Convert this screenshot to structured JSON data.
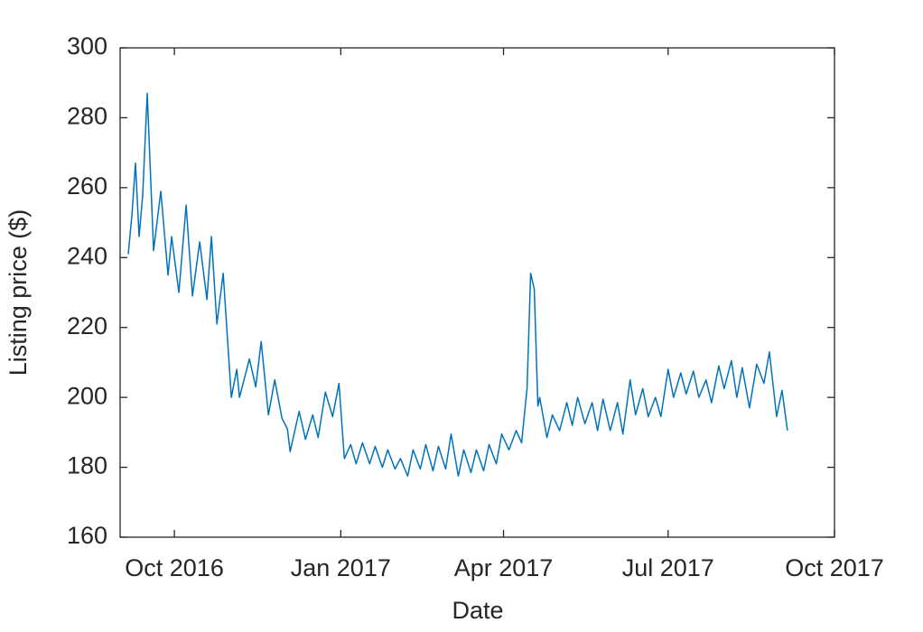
{
  "chart_data": {
    "type": "line",
    "x_label": "Date",
    "y_label": "Listing price   ($)",
    "x": [
      4.5,
      6.5,
      8.5,
      10.5,
      12.5,
      15,
      18.5,
      22.5,
      26.5,
      28.5,
      32.5,
      36.5,
      40,
      44,
      48,
      50.5,
      53.5,
      57,
      61.5,
      64.5,
      66,
      68.5,
      71.5,
      75,
      78,
      82,
      85.5,
      89.5,
      92.5,
      94,
      99,
      102.5,
      106.5,
      109.5,
      113.5,
      117.5,
      121,
      124,
      127.5,
      130.5,
      134,
      138,
      141,
      145,
      148,
      152,
      155,
      159,
      162,
      166,
      169,
      173,
      176,
      180,
      183,
      187,
      190,
      194,
      197,
      201,
      204,
      208,
      211,
      215,
      219,
      222,
      225,
      227,
      229,
      231,
      232,
      236,
      239,
      243,
      247,
      250,
      253,
      257,
      261,
      264,
      267,
      271,
      275,
      278,
      282,
      285,
      289,
      292,
      296,
      299,
      303,
      306,
      310,
      313,
      317,
      320,
      324,
      327,
      331,
      334,
      338,
      341,
      344,
      348,
      352,
      356,
      359,
      363,
      366,
      369
    ],
    "series": [
      {
        "color": "#0072bd",
        "values": [
          241,
          252,
          267,
          246,
          258,
          287,
          242,
          259,
          235,
          246,
          230,
          255,
          229,
          244.5,
          228,
          246,
          221,
          235.5,
          200,
          208,
          200,
          205,
          211,
          203,
          216,
          195,
          205,
          194,
          191,
          184.5,
          196,
          188,
          195,
          188.5,
          201.5,
          194.5,
          204,
          182.5,
          186.5,
          181,
          187,
          181,
          186,
          180,
          185,
          179.5,
          182.5,
          177.5,
          185,
          179.5,
          186.5,
          179,
          186,
          179.5,
          189.5,
          177.5,
          185,
          178.5,
          185,
          179,
          186.5,
          181,
          189.5,
          185,
          190.5,
          187,
          202.5,
          235.5,
          231,
          197.5,
          200,
          188.5,
          195,
          190.5,
          198.5,
          192,
          200,
          192.5,
          198.5,
          190.5,
          199.5,
          190.5,
          198.5,
          189.5,
          205,
          195,
          202.5,
          194.5,
          200,
          194.5,
          208,
          200,
          207,
          201,
          207.5,
          200,
          205,
          198.5,
          209,
          202.5,
          210.5,
          200,
          208.5,
          197,
          209.5,
          204,
          213,
          194.5,
          202,
          190.5
        ]
      }
    ],
    "xlim": [
      0,
      395
    ],
    "xticks": [
      {
        "value": 30,
        "label": "Oct 2016"
      },
      {
        "value": 122,
        "label": "Jan 2017"
      },
      {
        "value": 212,
        "label": "Apr 2017"
      },
      {
        "value": 303,
        "label": "Jul 2017"
      },
      {
        "value": 395,
        "label": "Oct 2017"
      }
    ],
    "ylim": [
      160,
      300
    ],
    "yticks": [
      160,
      180,
      200,
      220,
      240,
      260,
      280,
      300
    ],
    "grid": false
  }
}
